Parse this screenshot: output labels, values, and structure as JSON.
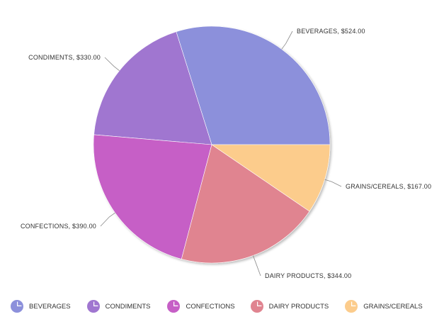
{
  "chart_data": {
    "type": "pie",
    "title": "",
    "slices": [
      {
        "name": "BEVERAGES",
        "value": 524.0,
        "label": "BEVERAGES, $524.00",
        "color": "#8c90db"
      },
      {
        "name": "CONDIMENTS",
        "value": 330.0,
        "label": "CONDIMENTS, $330.00",
        "color": "#a076d0"
      },
      {
        "name": "CONFECTIONS",
        "value": 390.0,
        "label": "CONFECTIONS, $390.00",
        "color": "#c65fc6"
      },
      {
        "name": "DAIRY PRODUCTS",
        "value": 344.0,
        "label": "DAIRY PRODUCTS, $344.00",
        "color": "#e08490"
      },
      {
        "name": "GRAINS/CEREALS",
        "value": 167.0,
        "label": "GRAINS/CEREALS, $167.00",
        "color": "#fccc8c"
      }
    ],
    "legend_position": "bottom-left"
  },
  "legend": {
    "items": [
      {
        "label": "BEVERAGES",
        "color": "#8c90db",
        "icon": "pie-icon"
      },
      {
        "label": "CONDIMENTS",
        "color": "#a076d0",
        "icon": "pie-icon"
      },
      {
        "label": "CONFECTIONS",
        "color": "#c65fc6",
        "icon": "pie-icon"
      },
      {
        "label": "DAIRY PRODUCTS",
        "color": "#e08490",
        "icon": "pie-icon"
      },
      {
        "label": "GRAINS/CEREALS",
        "color": "#fccc8c",
        "icon": "pie-icon"
      }
    ]
  }
}
